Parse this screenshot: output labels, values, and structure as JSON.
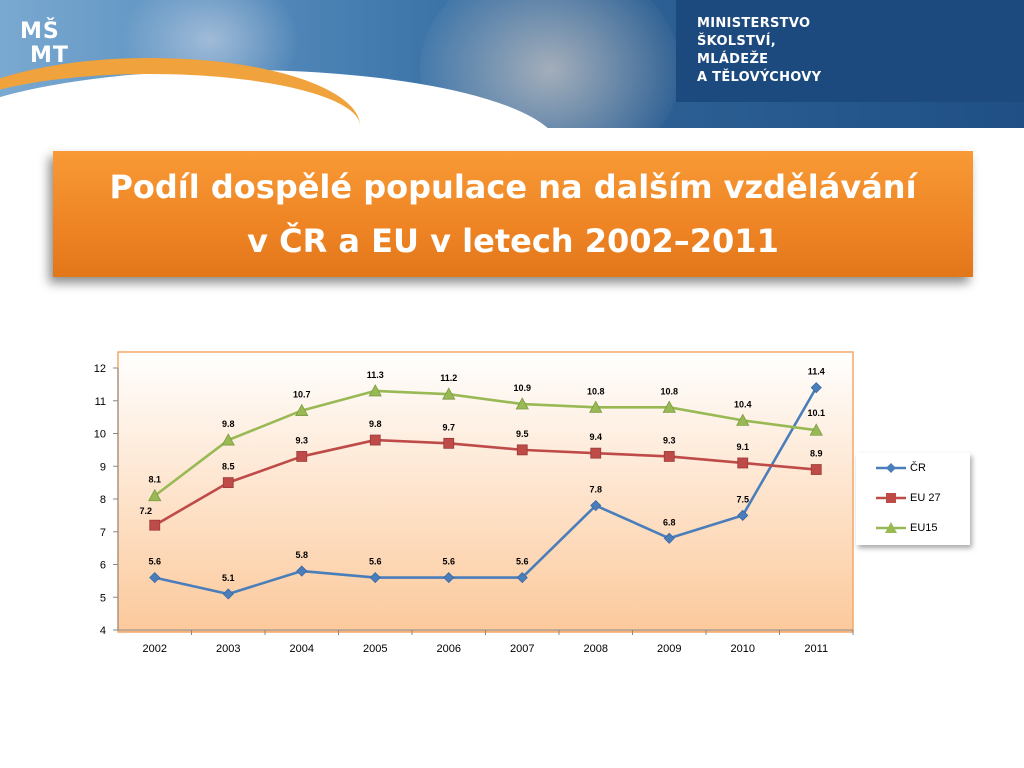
{
  "header": {
    "logo_text": "MŠMT",
    "ministry_lines": [
      "MINISTERSTVO",
      "ŠKOLSTVÍ,",
      "MLÁDEŽE",
      "A TĚLOVÝCHOVY"
    ]
  },
  "title": {
    "line1": "Podíl dospělé populace na dalším vzdělávání",
    "line2": "v ČR a EU v letech 2002–2011"
  },
  "chart_data": {
    "type": "line",
    "categories": [
      "2002",
      "2003",
      "2004",
      "2005",
      "2006",
      "2007",
      "2008",
      "2009",
      "2010",
      "2011"
    ],
    "ylim": [
      4,
      12
    ],
    "yticks": [
      "4",
      "5",
      "6",
      "7",
      "8",
      "9",
      "10",
      "11",
      "12"
    ],
    "series": [
      {
        "name": "ČR",
        "color": "#4a7ebb",
        "marker": "diamond",
        "values": [
          5.6,
          5.1,
          5.8,
          5.6,
          5.6,
          5.6,
          7.8,
          6.8,
          7.5,
          11.4
        ],
        "labels": [
          "5.6",
          "5.1",
          "5.8",
          "5.6",
          "5.6",
          "5.6",
          "7.8",
          "6.8",
          "7.5",
          "11.4"
        ]
      },
      {
        "name": "EU 27",
        "color": "#be4b48",
        "marker": "square",
        "values": [
          7.2,
          8.5,
          9.3,
          9.8,
          9.7,
          9.5,
          9.4,
          9.3,
          9.1,
          8.9
        ],
        "labels": [
          "7.2",
          "8.5",
          "9.3",
          "9.8",
          "9.7",
          "9.5",
          "9.4",
          "9.3",
          "9.1",
          "8.9"
        ]
      },
      {
        "name": "EU15",
        "color": "#98b954",
        "marker": "triangle",
        "values": [
          8.1,
          9.8,
          10.7,
          11.3,
          11.2,
          10.9,
          10.8,
          10.8,
          10.4,
          10.1
        ],
        "labels": [
          "8.1",
          "9.8",
          "10.7",
          "11.3",
          "11.2",
          "10.9",
          "10.8",
          "10.8",
          "10.4",
          "10.1"
        ]
      }
    ],
    "legend": "right",
    "grid": false,
    "xlabel": "",
    "ylabel": ""
  }
}
